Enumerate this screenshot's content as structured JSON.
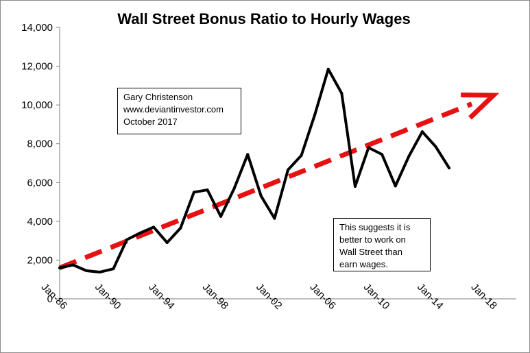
{
  "chart_data": {
    "type": "line",
    "title": "Wall Street Bonus Ratio to Hourly Wages",
    "xlabel": "",
    "ylabel": "",
    "x_tick_labels": [
      "Jan-86",
      "Jan-90",
      "Jan-94",
      "Jan-98",
      "Jan-02",
      "Jan-06",
      "Jan-10",
      "Jan-14",
      "Jan-18"
    ],
    "x_ticks": [
      1986,
      1990,
      1994,
      1998,
      2002,
      2006,
      2010,
      2014,
      2018
    ],
    "xlim": [
      1986,
      2020
    ],
    "y_tick_labels": [
      "0",
      "2,000",
      "4,000",
      "6,000",
      "8,000",
      "10,000",
      "12,000",
      "14,000"
    ],
    "y_ticks": [
      0,
      2000,
      4000,
      6000,
      8000,
      10000,
      12000,
      14000
    ],
    "ylim": [
      0,
      14000
    ],
    "grid": false,
    "series": [
      {
        "color": "#000000",
        "x": [
          1986,
          1987,
          1988,
          1989,
          1990,
          1991,
          1992,
          1993,
          1994,
          1995,
          1996,
          1997,
          1998,
          1999,
          2000,
          2001,
          2002,
          2003,
          2004,
          2005,
          2006,
          2007,
          2008,
          2009,
          2010,
          2011,
          2012,
          2013,
          2014,
          2015
        ],
        "values": [
          1600,
          1750,
          1450,
          1380,
          1550,
          3050,
          3400,
          3700,
          2900,
          3650,
          5500,
          5620,
          4250,
          5700,
          7450,
          5300,
          4150,
          6650,
          7400,
          9500,
          11850,
          10600,
          5800,
          7800,
          7450,
          5820,
          7350,
          8620,
          7850,
          6750
        ]
      }
    ],
    "trend_arrow": {
      "color": "#e81010",
      "x": [
        1986,
        2018.3
      ],
      "values": [
        1600,
        10500
      ]
    }
  },
  "annotations": {
    "author": {
      "lines": [
        "Gary Christenson",
        "www.deviantinvestor.com",
        "October 2017"
      ]
    },
    "message": {
      "lines": [
        "This suggests it is",
        "better to work on",
        "Wall Street than",
        "earn wages."
      ]
    }
  }
}
